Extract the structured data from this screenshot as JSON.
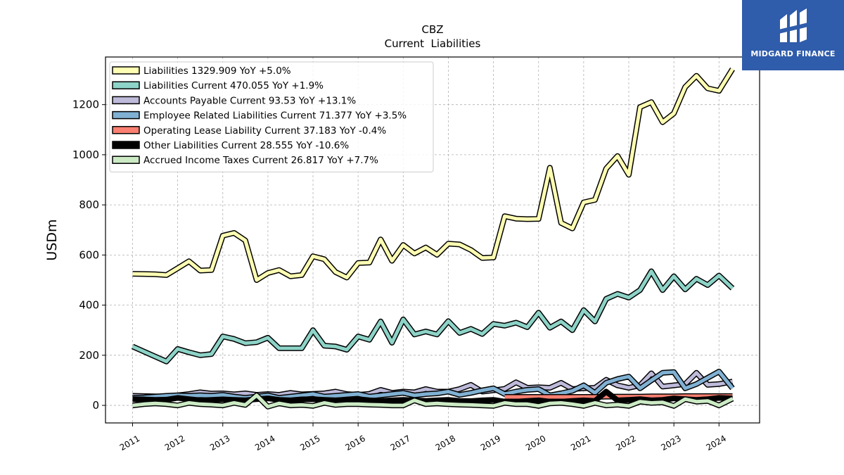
{
  "chart_data": {
    "type": "line",
    "title": "CBZ",
    "subtitle": "Current  Liabilities",
    "ylabel": "USDm",
    "xlabel": "",
    "ylim": [
      -70,
      1390
    ],
    "xlim": [
      2010.4,
      2024.9
    ],
    "yticks": [
      0,
      200,
      400,
      600,
      800,
      1000,
      1200
    ],
    "xticks": [
      "2011",
      "2012",
      "2013",
      "2014",
      "2015",
      "2016",
      "2017",
      "2018",
      "2019",
      "2020",
      "2021",
      "2022",
      "2023",
      "2024"
    ],
    "grid": true,
    "legend_position": "top-left",
    "series": [
      {
        "name": "Liabilities",
        "legend": "Liabilities  1329.909 YoY +5.0%",
        "color": "#ffffb3",
        "x": [
          2011.0,
          2011.25,
          2011.5,
          2011.75,
          2012.0,
          2012.25,
          2012.5,
          2012.75,
          2013.0,
          2013.25,
          2013.5,
          2013.75,
          2014.0,
          2014.25,
          2014.5,
          2014.75,
          2015.0,
          2015.25,
          2015.5,
          2015.75,
          2016.0,
          2016.25,
          2016.5,
          2016.75,
          2017.0,
          2017.25,
          2017.5,
          2017.75,
          2018.0,
          2018.25,
          2018.5,
          2018.75,
          2019.0,
          2019.25,
          2019.5,
          2019.75,
          2020.0,
          2020.25,
          2020.5,
          2020.75,
          2021.0,
          2021.25,
          2021.5,
          2021.75,
          2022.0,
          2022.25,
          2022.5,
          2022.75,
          2023.0,
          2023.25,
          2023.5,
          2023.75,
          2024.0,
          2024.3
        ],
        "y": [
          525,
          524,
          523,
          520,
          547,
          575,
          538,
          540,
          677,
          688,
          658,
          500,
          528,
          540,
          515,
          520,
          595,
          583,
          532,
          510,
          568,
          570,
          662,
          577,
          640,
          606,
          630,
          601,
          645,
          642,
          620,
          588,
          590,
          755,
          745,
          743,
          744,
          948,
          728,
          706,
          810,
          820,
          945,
          995,
          920,
          1190,
          1210,
          1130,
          1165,
          1270,
          1315,
          1265,
          1255,
          1342
        ]
      },
      {
        "name": "Liabilities Current",
        "legend": "Liabilities Current  470.055 YoY +1.9%",
        "color": "#8dd3c7",
        "x": [
          2011.0,
          2011.25,
          2011.5,
          2011.75,
          2012.0,
          2012.25,
          2012.5,
          2012.75,
          2013.0,
          2013.25,
          2013.5,
          2013.75,
          2014.0,
          2014.25,
          2014.5,
          2014.75,
          2015.0,
          2015.25,
          2015.5,
          2015.75,
          2016.0,
          2016.25,
          2016.5,
          2016.75,
          2017.0,
          2017.25,
          2017.5,
          2017.75,
          2018.0,
          2018.25,
          2018.5,
          2018.75,
          2019.0,
          2019.25,
          2019.5,
          2019.75,
          2020.0,
          2020.25,
          2020.5,
          2020.75,
          2021.0,
          2021.25,
          2021.5,
          2021.75,
          2022.0,
          2022.25,
          2022.5,
          2022.75,
          2023.0,
          2023.25,
          2023.5,
          2023.75,
          2024.0,
          2024.3
        ],
        "y": [
          235,
          215,
          195,
          175,
          225,
          212,
          200,
          205,
          275,
          265,
          248,
          252,
          270,
          228,
          228,
          228,
          300,
          238,
          235,
          222,
          275,
          262,
          335,
          250,
          343,
          283,
          295,
          283,
          336,
          289,
          305,
          285,
          325,
          318,
          330,
          312,
          370,
          310,
          335,
          300,
          380,
          335,
          425,
          445,
          430,
          460,
          535,
          460,
          515,
          463,
          505,
          480,
          518,
          467
        ]
      },
      {
        "name": "Accounts Payable Current",
        "legend": "Accounts Payable Current  93.53 YoY +13.1%",
        "color": "#bebada",
        "x": [
          2011.0,
          2011.25,
          2011.5,
          2011.75,
          2012.0,
          2012.25,
          2012.5,
          2012.75,
          2013.0,
          2013.25,
          2013.5,
          2013.75,
          2014.0,
          2014.25,
          2014.5,
          2014.75,
          2015.0,
          2015.25,
          2015.5,
          2015.75,
          2016.0,
          2016.25,
          2016.5,
          2016.75,
          2017.0,
          2017.25,
          2017.5,
          2017.75,
          2018.0,
          2018.25,
          2018.5,
          2018.75,
          2019.0,
          2019.25,
          2019.5,
          2019.75,
          2020.0,
          2020.25,
          2020.5,
          2020.75,
          2021.0,
          2021.25,
          2021.5,
          2021.75,
          2022.0,
          2022.25,
          2022.5,
          2022.75,
          2023.0,
          2023.25,
          2023.5,
          2023.75,
          2024.0,
          2024.3
        ],
        "y": [
          38,
          37,
          36,
          35,
          40,
          45,
          52,
          47,
          48,
          44,
          48,
          42,
          45,
          42,
          50,
          44,
          46,
          48,
          55,
          45,
          42,
          46,
          62,
          50,
          55,
          52,
          65,
          55,
          55,
          65,
          82,
          55,
          60,
          66,
          92,
          70,
          72,
          70,
          90,
          65,
          68,
          70,
          102,
          80,
          70,
          80,
          128,
          75,
          80,
          85,
          130,
          82,
          85,
          95
        ]
      },
      {
        "name": "Employee Related Liabilities Current",
        "legend": "Employee Related Liabilities Current  71.377 YoY +3.5%",
        "color": "#80b1d3",
        "x": [
          2011.0,
          2011.25,
          2011.5,
          2011.75,
          2012.0,
          2012.25,
          2012.5,
          2012.75,
          2013.0,
          2013.25,
          2013.5,
          2013.75,
          2014.0,
          2014.25,
          2014.5,
          2014.75,
          2015.0,
          2015.25,
          2015.5,
          2015.75,
          2016.0,
          2016.25,
          2016.5,
          2016.75,
          2017.0,
          2017.25,
          2017.5,
          2017.75,
          2018.0,
          2018.25,
          2018.5,
          2018.75,
          2019.0,
          2019.25,
          2019.5,
          2019.75,
          2020.0,
          2020.25,
          2020.5,
          2020.75,
          2021.0,
          2021.25,
          2021.5,
          2021.75,
          2022.0,
          2022.25,
          2022.5,
          2022.75,
          2023.0,
          2023.25,
          2023.5,
          2023.75,
          2024.0,
          2024.3
        ],
        "y": [
          30,
          32,
          35,
          38,
          40,
          38,
          40,
          38,
          42,
          35,
          30,
          35,
          40,
          30,
          35,
          40,
          45,
          35,
          38,
          42,
          45,
          35,
          40,
          45,
          50,
          40,
          45,
          48,
          55,
          42,
          50,
          60,
          68,
          45,
          55,
          62,
          65,
          40,
          48,
          58,
          80,
          50,
          90,
          105,
          115,
          68,
          100,
          130,
          133,
          68,
          85,
          110,
          135,
          68
        ]
      },
      {
        "name": "Operating Lease Liability Current",
        "legend": "Operating Lease Liability Current  37.183 YoY -0.4%",
        "color": "#fb8072",
        "x": [
          2019.25,
          2019.5,
          2019.75,
          2020.0,
          2020.25,
          2020.5,
          2020.75,
          2021.0,
          2021.25,
          2021.5,
          2021.75,
          2022.0,
          2022.25,
          2022.5,
          2022.75,
          2023.0,
          2023.25,
          2023.5,
          2023.75,
          2024.0,
          2024.3
        ],
        "y": [
          34,
          34,
          34,
          34,
          34,
          34,
          34,
          34,
          34,
          35,
          35,
          35,
          35,
          36,
          36,
          36,
          37,
          37,
          37,
          37,
          37
        ]
      },
      {
        "name": "Other Liabilities Current",
        "legend": "Other Liabilities Current  28.555 YoY -10.6%",
        "color": "#000000",
        "x": [
          2011.0,
          2011.25,
          2011.5,
          2011.75,
          2012.0,
          2012.25,
          2012.5,
          2012.75,
          2013.0,
          2013.25,
          2013.5,
          2013.75,
          2014.0,
          2014.25,
          2014.5,
          2014.75,
          2015.0,
          2015.25,
          2015.5,
          2015.75,
          2016.0,
          2016.25,
          2016.5,
          2016.75,
          2017.0,
          2017.25,
          2017.5,
          2017.75,
          2018.0,
          2018.25,
          2018.5,
          2018.75,
          2019.0,
          2019.25,
          2019.5,
          2019.75,
          2020.0,
          2020.25,
          2020.5,
          2020.75,
          2021.0,
          2021.25,
          2021.5,
          2021.75,
          2022.0,
          2022.25,
          2022.5,
          2022.75,
          2023.0,
          2023.25,
          2023.5,
          2023.75,
          2024.0,
          2024.3
        ],
        "y": [
          25,
          24,
          22,
          23,
          30,
          25,
          20,
          22,
          24,
          22,
          20,
          25,
          28,
          22,
          20,
          24,
          25,
          22,
          20,
          22,
          25,
          20,
          18,
          20,
          22,
          20,
          18,
          20,
          22,
          18,
          17,
          20,
          22,
          15,
          15,
          18,
          20,
          15,
          15,
          18,
          20,
          18,
          55,
          20,
          22,
          25,
          20,
          22,
          28,
          25,
          22,
          25,
          30,
          28
        ]
      },
      {
        "name": "Accrued Income Taxes Current",
        "legend": "Accrued Income Taxes Current  26.817 YoY +7.7%",
        "color": "#ccebc5",
        "x": [
          2011.0,
          2011.25,
          2011.5,
          2011.75,
          2012.0,
          2012.25,
          2012.5,
          2012.75,
          2013.0,
          2013.25,
          2013.5,
          2013.75,
          2014.0,
          2014.25,
          2014.5,
          2014.75,
          2015.0,
          2015.25,
          2015.5,
          2015.75,
          2016.0,
          2016.25,
          2016.5,
          2016.75,
          2017.0,
          2017.25,
          2017.5,
          2017.75,
          2018.0,
          2018.25,
          2018.5,
          2018.75,
          2019.0,
          2019.25,
          2019.5,
          2019.75,
          2020.0,
          2020.25,
          2020.5,
          2020.75,
          2021.0,
          2021.25,
          2021.5,
          2021.75,
          2022.0,
          2022.25,
          2022.5,
          2022.75,
          2023.0,
          2023.25,
          2023.5,
          2023.75,
          2024.0,
          2024.3
        ],
        "y": [
          0,
          5,
          8,
          5,
          0,
          10,
          5,
          3,
          0,
          10,
          2,
          40,
          -5,
          8,
          0,
          2,
          -2,
          10,
          2,
          5,
          5,
          3,
          2,
          0,
          0,
          20,
          5,
          8,
          5,
          3,
          2,
          0,
          -2,
          10,
          5,
          5,
          -2,
          8,
          10,
          5,
          -2,
          10,
          0,
          3,
          -2,
          15,
          10,
          12,
          -2,
          25,
          15,
          18,
          0,
          27
        ]
      }
    ]
  },
  "logo": {
    "text": "MIDGARD FINANCE"
  }
}
